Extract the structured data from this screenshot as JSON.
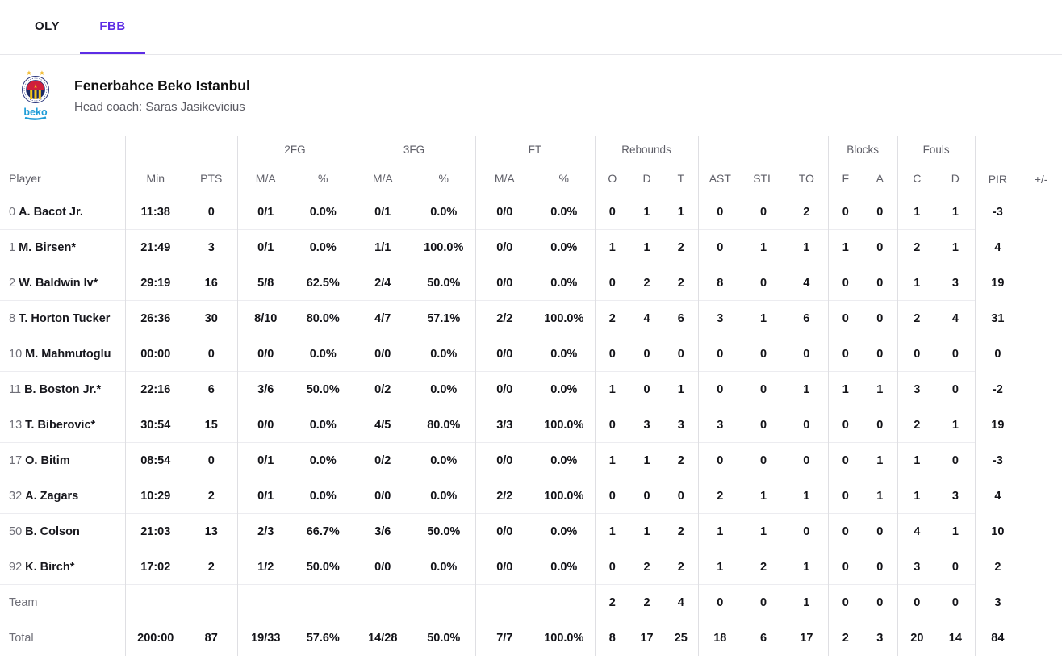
{
  "tabs": [
    {
      "label": "OLY",
      "active": false
    },
    {
      "label": "FBB",
      "active": true
    }
  ],
  "team": {
    "name": "Fenerbahce Beko Istanbul",
    "coach": "Head coach: Saras Jasikevicius",
    "logo_wordmark": "beko"
  },
  "colors": {
    "accent_purple": "#5d2de5",
    "text_dark": "#131318",
    "text_gray": "#6f6f78",
    "border_light": "#e6e6ea",
    "logo_blue": "#1e9cd7",
    "logo_red": "#cf1f3c",
    "logo_navy": "#1c2a66",
    "logo_gold": "#f2b723"
  },
  "table": {
    "group_headers": [
      {
        "label": "",
        "span": 1
      },
      {
        "label": "",
        "span": 2
      },
      {
        "label": "2FG",
        "span": 2
      },
      {
        "label": "3FG",
        "span": 2
      },
      {
        "label": "FT",
        "span": 2
      },
      {
        "label": "Rebounds",
        "span": 3
      },
      {
        "label": "",
        "span": 3
      },
      {
        "label": "Blocks",
        "span": 2
      },
      {
        "label": "Fouls",
        "span": 2
      },
      {
        "label": "",
        "span": 2
      }
    ],
    "columns": [
      "Player",
      "Min",
      "PTS",
      "M/A",
      "%",
      "M/A",
      "%",
      "M/A",
      "%",
      "O",
      "D",
      "T",
      "AST",
      "STL",
      "TO",
      "F",
      "A",
      "C",
      "D",
      "PIR",
      "+/-"
    ],
    "rows": [
      {
        "number": "0",
        "name": "A. Bacot Jr.",
        "stats": [
          "11:38",
          "0",
          "0/1",
          "0.0%",
          "0/1",
          "0.0%",
          "0/0",
          "0.0%",
          "0",
          "1",
          "1",
          "0",
          "0",
          "2",
          "0",
          "0",
          "1",
          "1",
          "-3",
          ""
        ]
      },
      {
        "number": "1",
        "name": "M. Birsen*",
        "stats": [
          "21:49",
          "3",
          "0/1",
          "0.0%",
          "1/1",
          "100.0%",
          "0/0",
          "0.0%",
          "1",
          "1",
          "2",
          "0",
          "1",
          "1",
          "1",
          "0",
          "2",
          "1",
          "4",
          ""
        ]
      },
      {
        "number": "2",
        "name": "W. Baldwin Iv*",
        "stats": [
          "29:19",
          "16",
          "5/8",
          "62.5%",
          "2/4",
          "50.0%",
          "0/0",
          "0.0%",
          "0",
          "2",
          "2",
          "8",
          "0",
          "4",
          "0",
          "0",
          "1",
          "3",
          "19",
          ""
        ]
      },
      {
        "number": "8",
        "name": "T. Horton Tucker",
        "stats": [
          "26:36",
          "30",
          "8/10",
          "80.0%",
          "4/7",
          "57.1%",
          "2/2",
          "100.0%",
          "2",
          "4",
          "6",
          "3",
          "1",
          "6",
          "0",
          "0",
          "2",
          "4",
          "31",
          ""
        ]
      },
      {
        "number": "10",
        "name": "M. Mahmutoglu",
        "stats": [
          "00:00",
          "0",
          "0/0",
          "0.0%",
          "0/0",
          "0.0%",
          "0/0",
          "0.0%",
          "0",
          "0",
          "0",
          "0",
          "0",
          "0",
          "0",
          "0",
          "0",
          "0",
          "0",
          ""
        ]
      },
      {
        "number": "11",
        "name": "B. Boston Jr.*",
        "stats": [
          "22:16",
          "6",
          "3/6",
          "50.0%",
          "0/2",
          "0.0%",
          "0/0",
          "0.0%",
          "1",
          "0",
          "1",
          "0",
          "0",
          "1",
          "1",
          "1",
          "3",
          "0",
          "-2",
          ""
        ]
      },
      {
        "number": "13",
        "name": "T. Biberovic*",
        "stats": [
          "30:54",
          "15",
          "0/0",
          "0.0%",
          "4/5",
          "80.0%",
          "3/3",
          "100.0%",
          "0",
          "3",
          "3",
          "3",
          "0",
          "0",
          "0",
          "0",
          "2",
          "1",
          "19",
          ""
        ]
      },
      {
        "number": "17",
        "name": "O. Bitim",
        "stats": [
          "08:54",
          "0",
          "0/1",
          "0.0%",
          "0/2",
          "0.0%",
          "0/0",
          "0.0%",
          "1",
          "1",
          "2",
          "0",
          "0",
          "0",
          "0",
          "1",
          "1",
          "0",
          "-3",
          ""
        ]
      },
      {
        "number": "32",
        "name": "A. Zagars",
        "stats": [
          "10:29",
          "2",
          "0/1",
          "0.0%",
          "0/0",
          "0.0%",
          "2/2",
          "100.0%",
          "0",
          "0",
          "0",
          "2",
          "1",
          "1",
          "0",
          "1",
          "1",
          "3",
          "4",
          ""
        ]
      },
      {
        "number": "50",
        "name": "B. Colson",
        "stats": [
          "21:03",
          "13",
          "2/3",
          "66.7%",
          "3/6",
          "50.0%",
          "0/0",
          "0.0%",
          "1",
          "1",
          "2",
          "1",
          "1",
          "0",
          "0",
          "0",
          "4",
          "1",
          "10",
          ""
        ]
      },
      {
        "number": "92",
        "name": "K. Birch*",
        "stats": [
          "17:02",
          "2",
          "1/2",
          "50.0%",
          "0/0",
          "0.0%",
          "0/0",
          "0.0%",
          "0",
          "2",
          "2",
          "1",
          "2",
          "1",
          "0",
          "0",
          "3",
          "0",
          "2",
          ""
        ]
      }
    ],
    "team_row": {
      "label": "Team",
      "stats": [
        "",
        "",
        "",
        "",
        "",
        "",
        "",
        "",
        "2",
        "2",
        "4",
        "0",
        "0",
        "1",
        "0",
        "0",
        "0",
        "0",
        "3",
        ""
      ]
    },
    "total_row": {
      "label": "Total",
      "stats": [
        "200:00",
        "87",
        "19/33",
        "57.6%",
        "14/28",
        "50.0%",
        "7/7",
        "100.0%",
        "8",
        "17",
        "25",
        "18",
        "6",
        "17",
        "2",
        "3",
        "20",
        "14",
        "84",
        ""
      ]
    }
  }
}
